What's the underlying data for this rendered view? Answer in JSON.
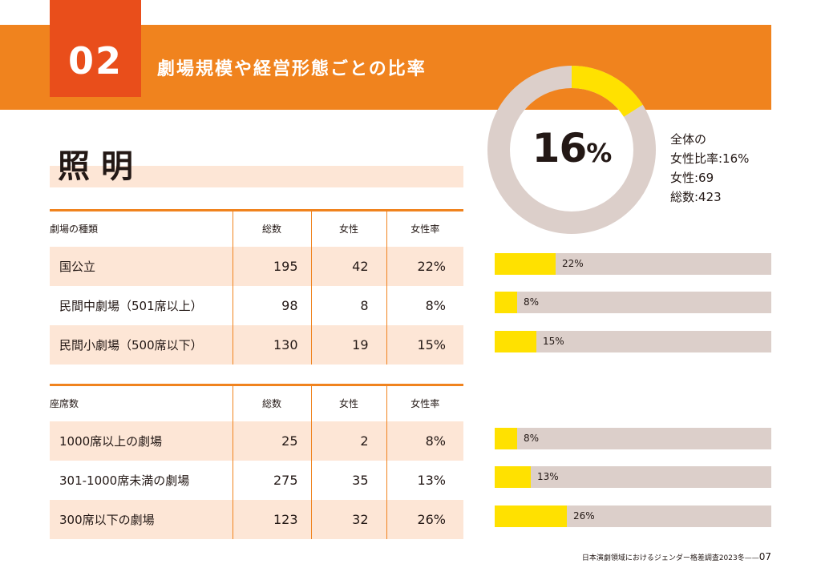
{
  "section": {
    "number": "02",
    "title": "劇場規模や経営形態ごとの比率"
  },
  "category": "照明",
  "overall": {
    "percent_value": "16",
    "percent_sign": "%",
    "ratio": 0.16,
    "lines": [
      "全体の",
      "女性比率:16%",
      "女性:69",
      "総数:423"
    ]
  },
  "colors": {
    "accent_orange": "#f0831e",
    "number_red": "#e94e1b",
    "bar_yellow": "#ffe100",
    "bar_gray": "#dccfca",
    "row_shade": "#fde6d6"
  },
  "table1": {
    "headers": [
      "劇場の種類",
      "総数",
      "女性",
      "女性率"
    ],
    "rows": [
      {
        "name": "国公立",
        "total": "195",
        "female": "42",
        "rate": "22%",
        "ratio": 0.22
      },
      {
        "name": "民間中劇場（501席以上）",
        "total": "98",
        "female": "8",
        "rate": "8%",
        "ratio": 0.08
      },
      {
        "name": "民間小劇場（500席以下）",
        "total": "130",
        "female": "19",
        "rate": "15%",
        "ratio": 0.15
      }
    ]
  },
  "table2": {
    "headers": [
      "座席数",
      "総数",
      "女性",
      "女性率"
    ],
    "rows": [
      {
        "name": "1000席以上の劇場",
        "total": "25",
        "female": "2",
        "rate": "8%",
        "ratio": 0.08
      },
      {
        "name": "301-1000席未満の劇場",
        "total": "275",
        "female": "35",
        "rate": "13%",
        "ratio": 0.13
      },
      {
        "name": "300席以下の劇場",
        "total": "123",
        "female": "32",
        "rate": "26%",
        "ratio": 0.26
      }
    ]
  },
  "footer": {
    "text": "日本演劇領域におけるジェンダー格差調査2023冬——",
    "page": "07"
  }
}
